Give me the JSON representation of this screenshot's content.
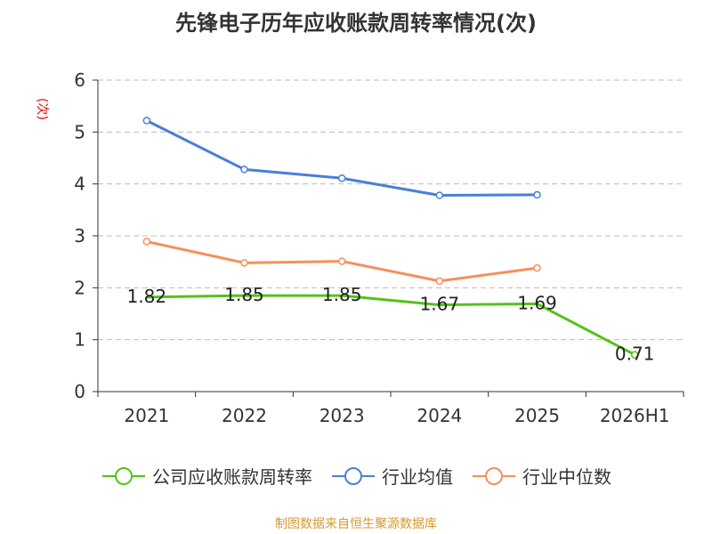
{
  "chart_data": {
    "type": "line",
    "title": "先锋电子历年应收账款周转率情况(次)",
    "y_unit": "(次)",
    "x": [
      "2021",
      "2022",
      "2023",
      "2024",
      "2025",
      "2026H1"
    ],
    "ylim": [
      0,
      6
    ],
    "yticks": [
      "0",
      "1",
      "2",
      "3",
      "4",
      "5",
      "6"
    ],
    "grid": true,
    "legend_position": "bottom",
    "series": [
      {
        "name": "公司应收账款周转率",
        "color": "#52c41a",
        "values": [
          1.82,
          1.85,
          1.85,
          1.67,
          1.69,
          0.71
        ],
        "labels": [
          "1.82",
          "1.85",
          "1.85",
          "1.67",
          "1.69",
          "0.71"
        ]
      },
      {
        "name": "行业均值",
        "color": "#4a7fd8",
        "values": [
          5.22,
          4.28,
          4.11,
          3.78,
          3.79,
          null
        ]
      },
      {
        "name": "行业中位数",
        "color": "#f5905a",
        "values": [
          2.89,
          2.48,
          2.51,
          2.13,
          2.38,
          null
        ]
      }
    ]
  },
  "source": "制图数据来自恒生聚源数据库"
}
